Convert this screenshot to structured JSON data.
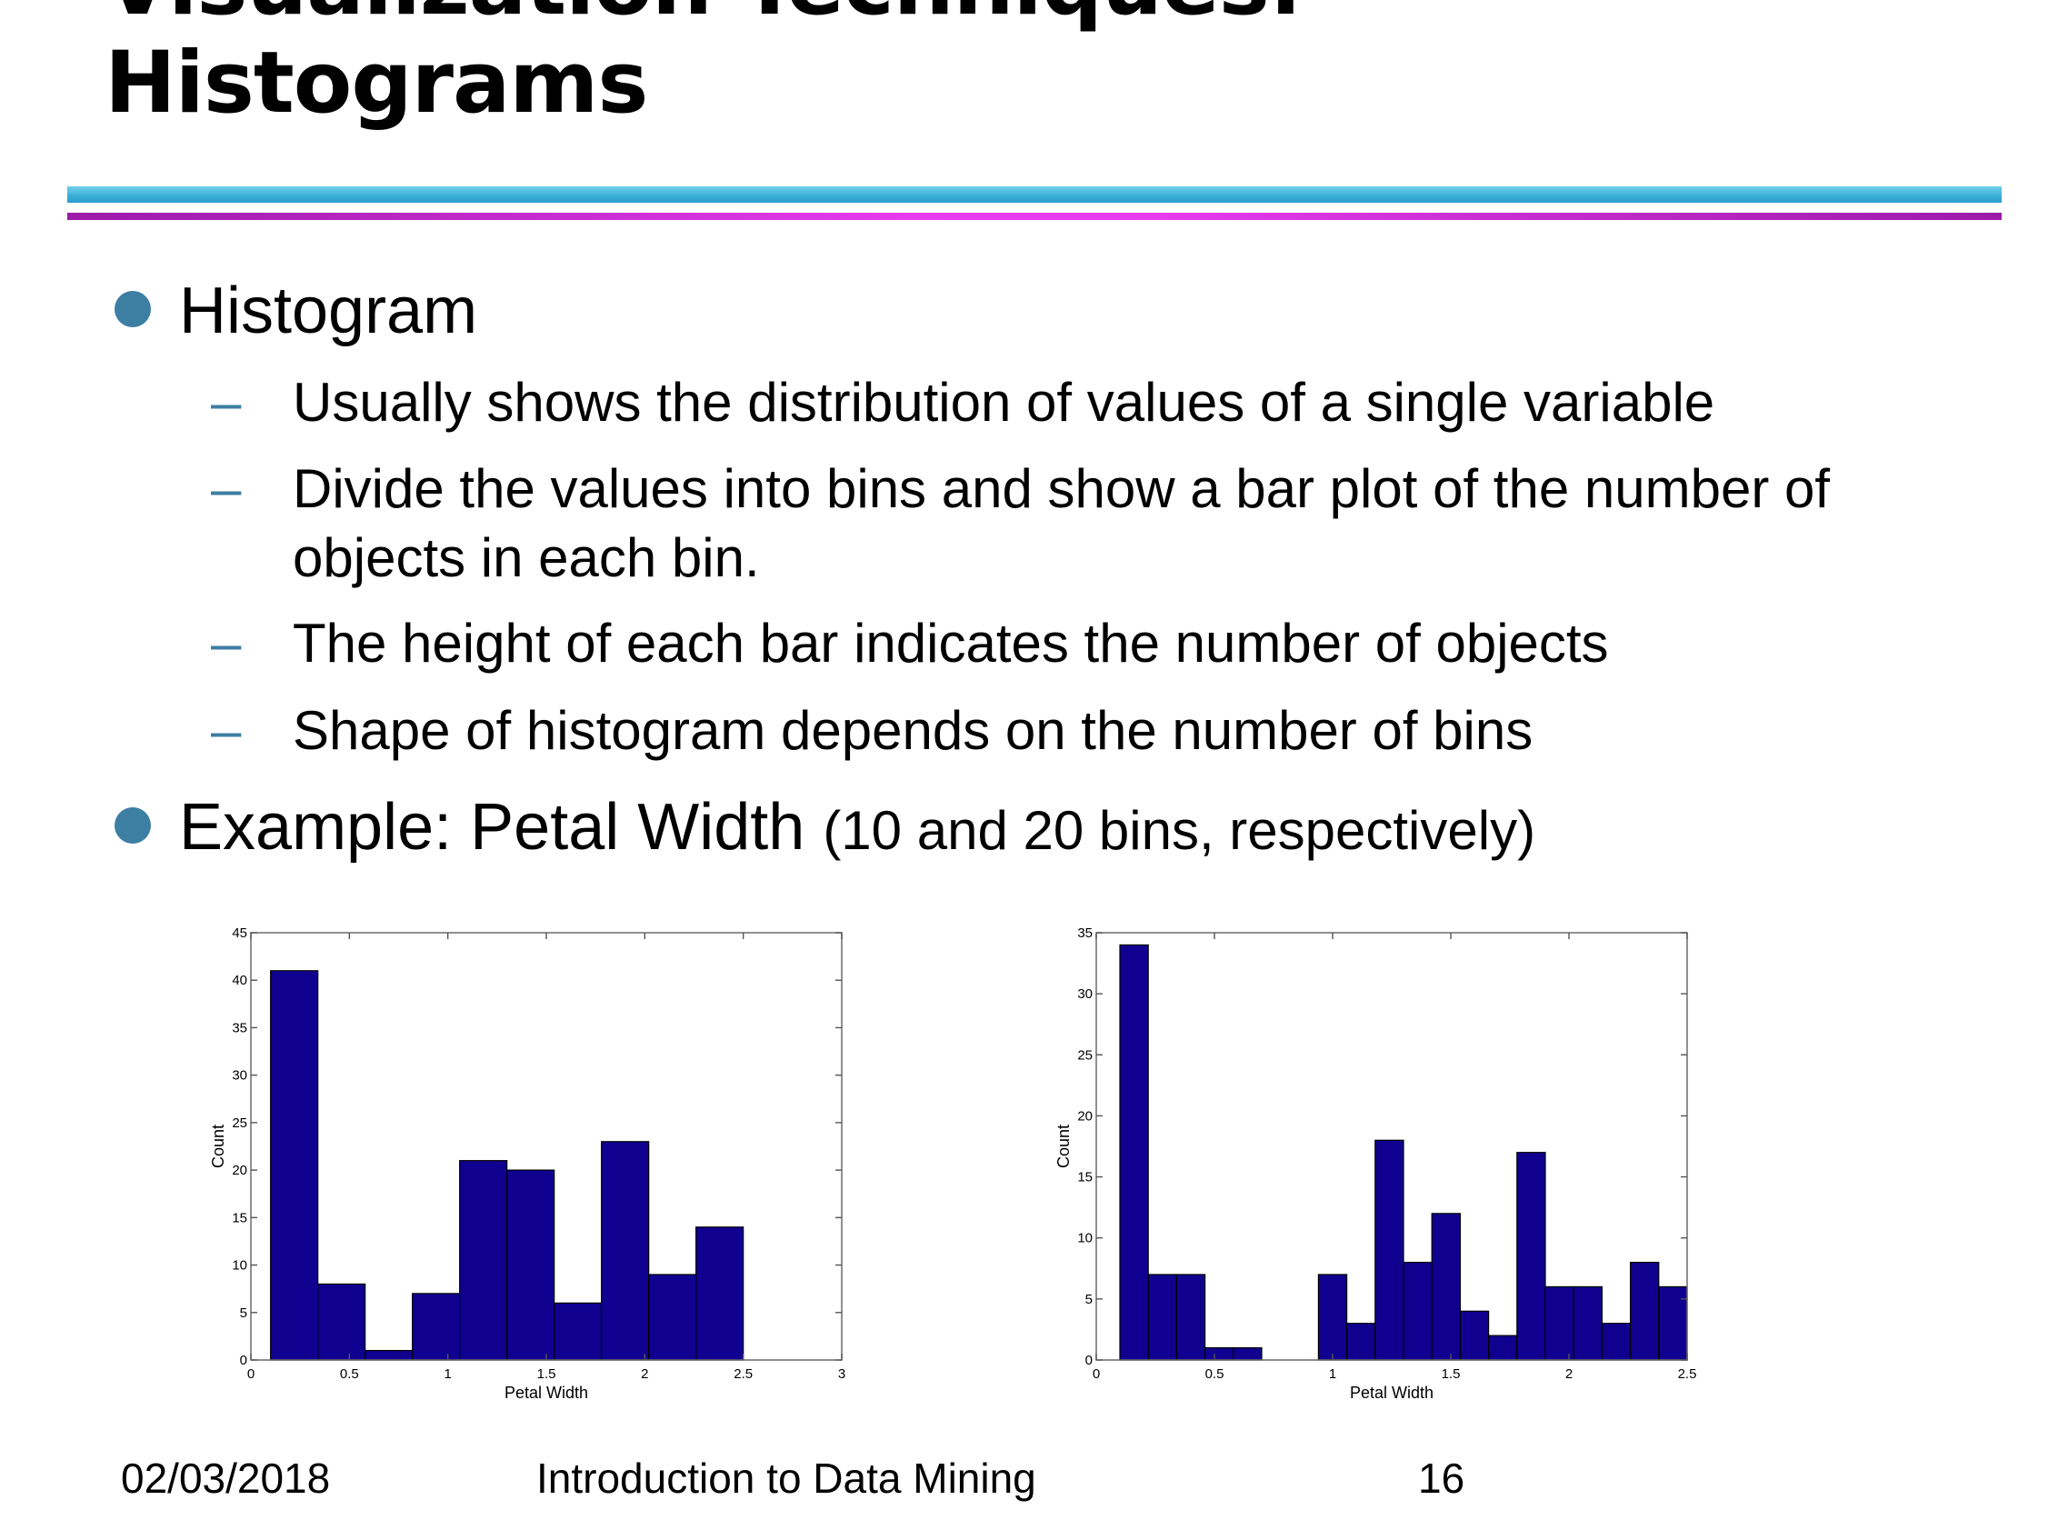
{
  "slide": {
    "title_line1": "Visualization Techniques:",
    "title_line2": "Histograms"
  },
  "bullets": {
    "b1": "Histogram",
    "sub": [
      "Usually shows the distribution of values of a single variable",
      "Divide the values into bins and show a bar plot of the number of",
      "objects in each bin.",
      "The height of each bar indicates the number of objects",
      "Shape of histogram depends on the number of bins"
    ],
    "b2_main": "Example: Petal Width",
    "b2_note": "(10 and 20 bins, respectively)"
  },
  "footer": {
    "date": "02/03/2018",
    "course": "Introduction to Data Mining",
    "page": "16"
  },
  "colors": {
    "bar": "#100090",
    "bullet": "#3d7ea3"
  },
  "chart_data": [
    {
      "type": "bar",
      "xlabel": "Petal Width",
      "ylabel": "Count",
      "xlim": [
        0,
        3
      ],
      "ylim": [
        0,
        45
      ],
      "xticks": [
        0,
        0.5,
        1,
        1.5,
        2,
        2.5,
        3
      ],
      "xtick_labels": [
        "0",
        "0.5",
        "1",
        "1.5",
        "2",
        "2.5",
        "3"
      ],
      "yticks": [
        0,
        5,
        10,
        15,
        20,
        25,
        30,
        35,
        40,
        45
      ],
      "ytick_labels": [
        "0",
        "5",
        "10",
        "15",
        "20",
        "25",
        "30",
        "35",
        "40",
        "45"
      ],
      "bin_start": 0.1,
      "bin_width": 0.24,
      "values": [
        41,
        8,
        1,
        7,
        21,
        20,
        6,
        23,
        9,
        14
      ]
    },
    {
      "type": "bar",
      "xlabel": "Petal Width",
      "ylabel": "Count",
      "xlim": [
        0,
        2.5
      ],
      "ylim": [
        0,
        35
      ],
      "xticks": [
        0,
        0.5,
        1,
        1.5,
        2,
        2.5
      ],
      "xtick_labels": [
        "0",
        "0.5",
        "1",
        "1.5",
        "2",
        "2.5"
      ],
      "yticks": [
        0,
        5,
        10,
        15,
        20,
        25,
        30,
        35
      ],
      "ytick_labels": [
        "0",
        "5",
        "10",
        "15",
        "20",
        "25",
        "30",
        "35"
      ],
      "bin_start": 0.1,
      "bin_width": 0.12,
      "values": [
        34,
        7,
        7,
        1,
        1,
        0,
        0,
        7,
        3,
        18,
        8,
        12,
        4,
        2,
        17,
        6,
        6,
        3,
        8,
        6
      ]
    }
  ]
}
